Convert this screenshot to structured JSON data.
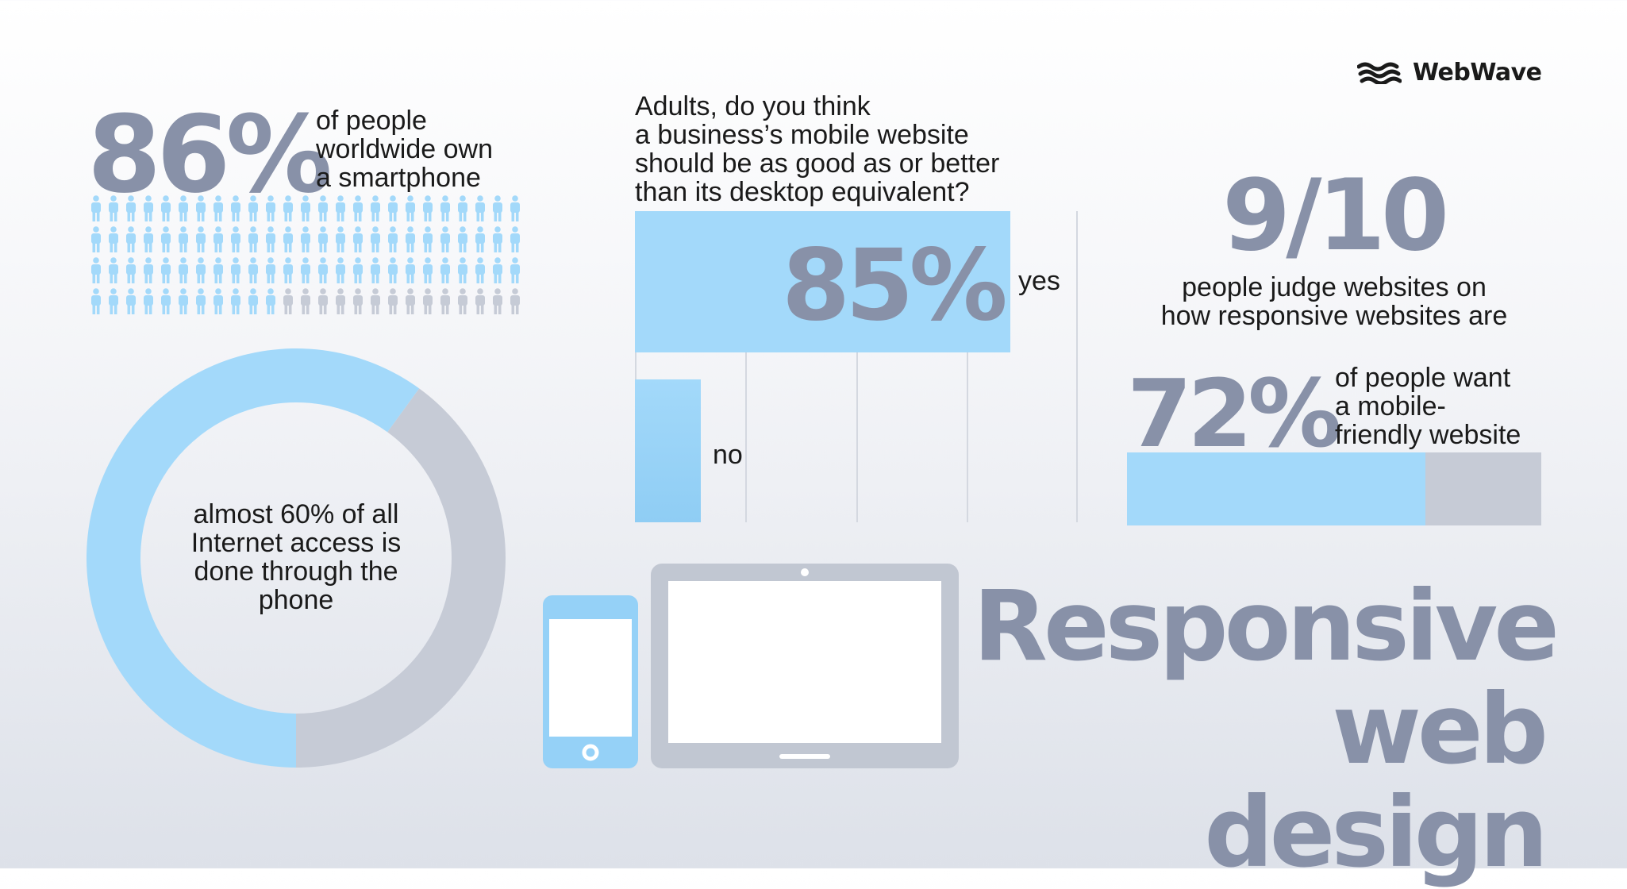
{
  "brand": {
    "name": "WebWave",
    "logo_icon": "waves-logo-icon"
  },
  "colors": {
    "blue": "#a3d9fa",
    "gray": "#c6cbd6",
    "big_text": "#8891a8"
  },
  "smartphone_stat": {
    "value": "86%",
    "text_lines": [
      "of people",
      "worldwide own",
      "a smartphone"
    ],
    "icon": "person-icon"
  },
  "survey": {
    "question_lines": [
      "Adults, do you think",
      "a business’s mobile website",
      "should be as good as or better",
      "than its desktop equivalent?"
    ],
    "yes_value": "85%",
    "yes_label": "yes",
    "no_label": "no"
  },
  "judge_stat": {
    "value": "9/10",
    "text_lines": [
      "people judge websites on",
      "how responsive websites are"
    ]
  },
  "mobile_friendly_stat": {
    "value": "72%",
    "text_lines": [
      "of people want",
      "a mobile-",
      "friendly website"
    ]
  },
  "donut": {
    "text_lines": [
      "almost 60% of all",
      "Internet access is",
      "done through the",
      "phone"
    ]
  },
  "headline": {
    "line1": "Responsive",
    "line2": "web design"
  },
  "devices": [
    "phone-icon",
    "tablet-icon"
  ],
  "chart_data": [
    {
      "type": "pictogram",
      "icons_total": 100,
      "highlighted": 86,
      "rows": 4,
      "columns": 25,
      "value": "86%",
      "label": "of people worldwide own a smartphone"
    },
    {
      "type": "bar",
      "orientation": "horizontal",
      "title": "Adults, do you think a business’s mobile website should be as good as or better than its desktop equivalent?",
      "categories": [
        "yes",
        "no"
      ],
      "values": [
        85,
        15
      ],
      "data_labels": [
        "85%",
        ""
      ],
      "xlim": [
        0,
        100
      ],
      "grid": true
    },
    {
      "type": "bar",
      "orientation": "horizontal",
      "stacked": true,
      "values": [
        72,
        28
      ],
      "data_labels": [
        "72%"
      ],
      "label": "of people want a mobile-friendly website"
    },
    {
      "type": "pie",
      "donut": true,
      "values": [
        60,
        40
      ],
      "colors": [
        "#a3d9fa",
        "#c6cbd6"
      ],
      "label": "almost 60% of all Internet access is done through the phone"
    }
  ]
}
